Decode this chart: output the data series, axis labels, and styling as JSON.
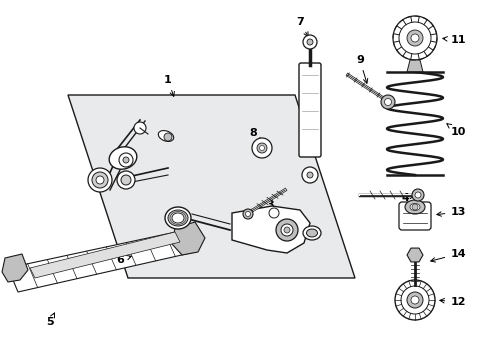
{
  "background_color": "#ffffff",
  "figure_width": 4.89,
  "figure_height": 3.6,
  "dpi": 100,
  "light_gray": "#e8e8e8",
  "dark_line": "#1a1a1a",
  "gray_fill": "#c0c0c0",
  "white": "#ffffff"
}
